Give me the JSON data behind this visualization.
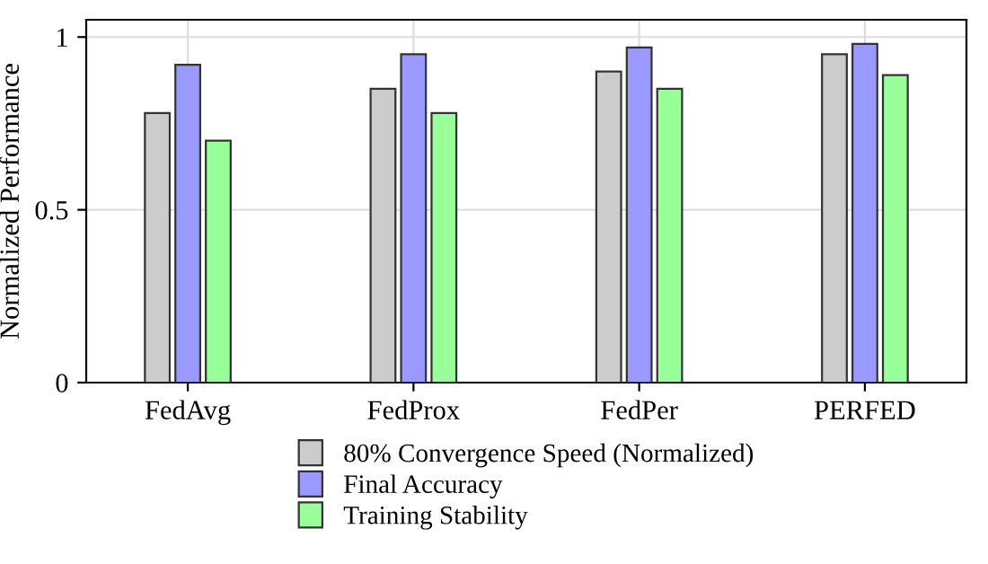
{
  "chart_data": {
    "type": "bar",
    "ylabel": "Normalized Performance",
    "categories": [
      "FedAvg",
      "FedProx",
      "FedPer",
      "PERFED"
    ],
    "series": [
      {
        "name": "80% Convergence Speed (Normalized)",
        "color": "#cccccc",
        "values": [
          0.78,
          0.85,
          0.9,
          0.95
        ]
      },
      {
        "name": "Final Accuracy",
        "color": "#9999ff",
        "values": [
          0.92,
          0.95,
          0.97,
          0.98
        ]
      },
      {
        "name": "Training Stability",
        "color": "#99ff99",
        "values": [
          0.7,
          0.78,
          0.85,
          0.89
        ]
      }
    ],
    "ylim": [
      0,
      1.05
    ],
    "yticks": [
      0,
      0.5,
      1
    ],
    "grid": true,
    "legend": "bottom"
  }
}
